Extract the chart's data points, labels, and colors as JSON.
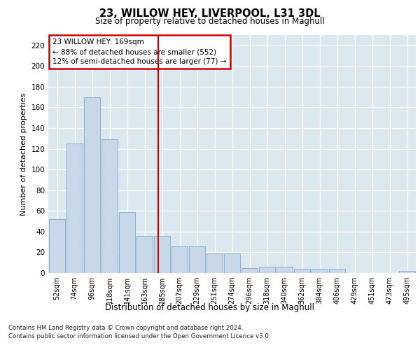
{
  "title": "23, WILLOW HEY, LIVERPOOL, L31 3DL",
  "subtitle": "Size of property relative to detached houses in Maghull",
  "xlabel": "Distribution of detached houses by size in Maghull",
  "ylabel": "Number of detached properties",
  "categories": [
    "52sqm",
    "74sqm",
    "96sqm",
    "118sqm",
    "141sqm",
    "163sqm",
    "185sqm",
    "207sqm",
    "229sqm",
    "251sqm",
    "274sqm",
    "296sqm",
    "318sqm",
    "340sqm",
    "362sqm",
    "384sqm",
    "406sqm",
    "429sqm",
    "451sqm",
    "473sqm",
    "495sqm"
  ],
  "values": [
    52,
    125,
    170,
    129,
    59,
    36,
    36,
    26,
    26,
    19,
    19,
    5,
    6,
    6,
    4,
    4,
    4,
    0,
    0,
    0,
    2
  ],
  "bar_color": "#c8d8e8",
  "bar_edge_color": "#7fa8c8",
  "vline_x": 5.77,
  "vline_color": "#cc0000",
  "ylim": [
    0,
    230
  ],
  "yticks": [
    0,
    20,
    40,
    60,
    80,
    100,
    120,
    140,
    160,
    180,
    200,
    220
  ],
  "annotation_title": "23 WILLOW HEY: 169sqm",
  "annotation_line1": "← 88% of detached houses are smaller (552)",
  "annotation_line2": "12% of semi-detached houses are larger (77) →",
  "annotation_box_color": "#cc0000",
  "background_color": "#dce8f0",
  "footer_line1": "Contains HM Land Registry data © Crown copyright and database right 2024.",
  "footer_line2": "Contains public sector information licensed under the Open Government Licence v3.0."
}
